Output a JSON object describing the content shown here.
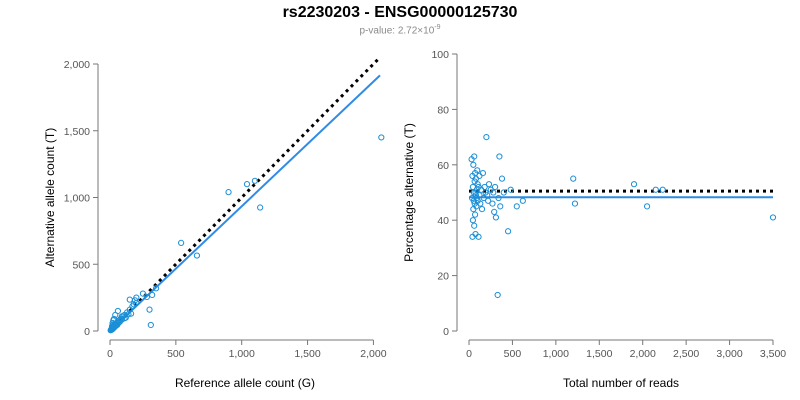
{
  "page": {
    "title": "rs2230203 - ENSG00000125730",
    "subtitle_prefix": "p-value: 2.72×10",
    "subtitle_exponent": "-9"
  },
  "colors": {
    "points": "#1b8fd6",
    "fit_line": "#2f8be6",
    "reference_line": "#000000",
    "axis": "#777777"
  },
  "chart_data": [
    {
      "type": "scatter",
      "xlabel": "Reference allele count (G)",
      "ylabel": "Alternative allele count (T)",
      "xlim": [
        0,
        2050
      ],
      "ylim": [
        0,
        2000
      ],
      "xticks": [
        0,
        500,
        1000,
        1500,
        2000
      ],
      "xtick_labels": [
        "0",
        "500",
        "1,000",
        "1,500",
        "2,000"
      ],
      "yticks": [
        0,
        500,
        1000,
        1500,
        2000
      ],
      "ytick_labels": [
        "0",
        "500",
        "1,000",
        "1,500",
        "2,000"
      ],
      "points": [
        [
          5,
          5
        ],
        [
          8,
          10
        ],
        [
          10,
          8
        ],
        [
          12,
          15
        ],
        [
          15,
          12
        ],
        [
          15,
          20
        ],
        [
          18,
          25
        ],
        [
          20,
          15
        ],
        [
          22,
          30
        ],
        [
          25,
          20
        ],
        [
          28,
          35
        ],
        [
          30,
          25
        ],
        [
          30,
          40
        ],
        [
          35,
          30
        ],
        [
          35,
          45
        ],
        [
          40,
          35
        ],
        [
          40,
          55
        ],
        [
          45,
          40
        ],
        [
          50,
          50
        ],
        [
          50,
          60
        ],
        [
          55,
          45
        ],
        [
          60,
          70
        ],
        [
          65,
          60
        ],
        [
          70,
          80
        ],
        [
          75,
          70
        ],
        [
          80,
          90
        ],
        [
          90,
          85
        ],
        [
          100,
          110
        ],
        [
          110,
          120
        ],
        [
          120,
          100
        ],
        [
          130,
          140
        ],
        [
          140,
          125
        ],
        [
          150,
          160
        ],
        [
          160,
          130
        ],
        [
          170,
          185
        ],
        [
          180,
          200
        ],
        [
          190,
          230
        ],
        [
          200,
          210
        ],
        [
          150,
          235
        ],
        [
          40,
          120
        ],
        [
          60,
          150
        ],
        [
          90,
          110
        ],
        [
          110,
          95
        ],
        [
          200,
          250
        ],
        [
          250,
          280
        ],
        [
          280,
          255
        ],
        [
          300,
          160
        ],
        [
          310,
          45
        ],
        [
          320,
          270
        ],
        [
          350,
          320
        ],
        [
          540,
          660
        ],
        [
          660,
          565
        ],
        [
          900,
          1040
        ],
        [
          1040,
          1100
        ],
        [
          1100,
          1125
        ],
        [
          1140,
          925
        ],
        [
          2060,
          1450
        ],
        [
          20,
          60
        ],
        [
          25,
          80
        ],
        [
          30,
          90
        ],
        [
          20,
          45
        ],
        [
          15,
          35
        ]
      ],
      "fit_line": [
        [
          0,
          0
        ],
        [
          2050,
          1915
        ]
      ],
      "reference_line": [
        [
          0,
          0
        ],
        [
          2050,
          2050
        ]
      ]
    },
    {
      "type": "scatter",
      "xlabel": "Total number of reads",
      "ylabel": "Percentage alternative (T)",
      "xlim": [
        0,
        3500
      ],
      "ylim": [
        0,
        100
      ],
      "xticks": [
        0,
        500,
        1000,
        1500,
        2000,
        2500,
        3000,
        3500
      ],
      "xtick_labels": [
        "0",
        "500",
        "1,000",
        "1,500",
        "2,000",
        "2,500",
        "3,000",
        "3,500"
      ],
      "yticks": [
        0,
        20,
        40,
        60,
        80,
        100
      ],
      "ytick_labels": [
        "0",
        "20",
        "40",
        "60",
        "80",
        "100"
      ],
      "points": [
        [
          30,
          62
        ],
        [
          35,
          48
        ],
        [
          40,
          56
        ],
        [
          40,
          34
        ],
        [
          45,
          40
        ],
        [
          45,
          52
        ],
        [
          50,
          44
        ],
        [
          50,
          60
        ],
        [
          55,
          50
        ],
        [
          55,
          47
        ],
        [
          60,
          63
        ],
        [
          60,
          38
        ],
        [
          65,
          54
        ],
        [
          65,
          46
        ],
        [
          70,
          57
        ],
        [
          70,
          42
        ],
        [
          75,
          50
        ],
        [
          75,
          35
        ],
        [
          80,
          49
        ],
        [
          80,
          55
        ],
        [
          85,
          45
        ],
        [
          90,
          51
        ],
        [
          90,
          48
        ],
        [
          95,
          58
        ],
        [
          100,
          47
        ],
        [
          100,
          53
        ],
        [
          110,
          52
        ],
        [
          110,
          34
        ],
        [
          120,
          49
        ],
        [
          120,
          56
        ],
        [
          130,
          46
        ],
        [
          140,
          51
        ],
        [
          150,
          44
        ],
        [
          160,
          57
        ],
        [
          170,
          48
        ],
        [
          180,
          52
        ],
        [
          190,
          50
        ],
        [
          200,
          70
        ],
        [
          210,
          49
        ],
        [
          220,
          47
        ],
        [
          230,
          53
        ],
        [
          250,
          51
        ],
        [
          270,
          46
        ],
        [
          280,
          50
        ],
        [
          290,
          43
        ],
        [
          300,
          52
        ],
        [
          310,
          41
        ],
        [
          330,
          13
        ],
        [
          340,
          48
        ],
        [
          350,
          63
        ],
        [
          360,
          45
        ],
        [
          380,
          55
        ],
        [
          400,
          50
        ],
        [
          450,
          36
        ],
        [
          480,
          51
        ],
        [
          550,
          45
        ],
        [
          620,
          47
        ],
        [
          1200,
          55
        ],
        [
          1220,
          46
        ],
        [
          1900,
          53
        ],
        [
          2050,
          45
        ],
        [
          2150,
          51
        ],
        [
          2230,
          51
        ],
        [
          3500,
          41
        ]
      ],
      "fit_line": [
        [
          0,
          48.3
        ],
        [
          3500,
          48.3
        ]
      ],
      "reference_line": [
        [
          0,
          50.5
        ],
        [
          3500,
          50.5
        ]
      ]
    }
  ]
}
